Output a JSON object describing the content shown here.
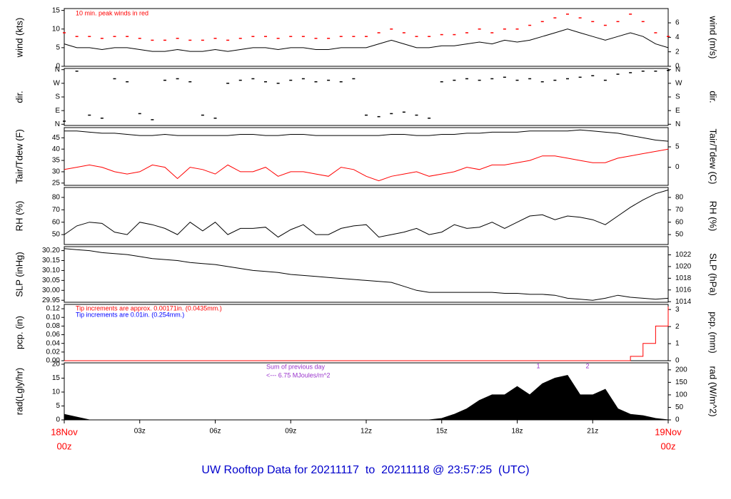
{
  "title": "UW Rooftop Data for 20211117  to  20211118 @ 23:57:25  (UTC)",
  "title_color": "#0000cc",
  "x_axis": {
    "xlim": [
      0,
      24
    ],
    "x": [
      0,
      0.5,
      1,
      1.5,
      2,
      2.5,
      3,
      3.5,
      4,
      4.5,
      5,
      5.5,
      6,
      6.5,
      7,
      7.5,
      8,
      8.5,
      9,
      9.5,
      10,
      10.5,
      11,
      11.5,
      12,
      12.5,
      13,
      13.5,
      14,
      14.5,
      15,
      15.5,
      16,
      16.5,
      17,
      17.5,
      18,
      18.5,
      19,
      19.5,
      20,
      20.5,
      21,
      21.5,
      22,
      22.5,
      23,
      23.5,
      24
    ],
    "xticks": [
      {
        "value": 0,
        "label": "18Nov",
        "label2": "00z",
        "color": "#ff0000"
      },
      {
        "value": 3,
        "label": "03z"
      },
      {
        "value": 6,
        "label": "06z"
      },
      {
        "value": 9,
        "label": "09z"
      },
      {
        "value": 12,
        "label": "12z"
      },
      {
        "value": 15,
        "label": "15z"
      },
      {
        "value": 18,
        "label": "18z"
      },
      {
        "value": 21,
        "label": "21z"
      },
      {
        "value": 24,
        "label": "19Nov",
        "label2": "00z",
        "color": "#ff0000"
      }
    ]
  },
  "chart_data": [
    {
      "type": "line",
      "ylabel": "wind (kts)",
      "y2label": "wind (m/s)",
      "ylim": [
        0,
        15.5
      ],
      "yticks": [
        0,
        5,
        10,
        15
      ],
      "y2lim": [
        0,
        7.97
      ],
      "y2ticks": [
        0,
        2,
        4,
        6
      ],
      "annotations": [
        {
          "text": "10 min. peak winds in red",
          "color": "#ff0000"
        }
      ],
      "series": [
        {
          "name": "wind",
          "mark": "line",
          "color": "#000000",
          "values": [
            6,
            5,
            5,
            4.5,
            5,
            5,
            4.5,
            4,
            4,
            4.5,
            4,
            4,
            4.5,
            4,
            4.5,
            5,
            5,
            4.5,
            5,
            5,
            4.5,
            4.5,
            5,
            5,
            5,
            6,
            7,
            6,
            5,
            5,
            5.5,
            5.5,
            6,
            6.5,
            6,
            7,
            6.5,
            7,
            8,
            9,
            10,
            9,
            8,
            7,
            8,
            9,
            8,
            6,
            5
          ]
        },
        {
          "name": "peak",
          "mark": "points",
          "color": "#ff0000",
          "values": [
            9,
            8,
            8,
            7.5,
            8,
            8,
            7.5,
            7,
            7,
            7.5,
            7,
            7,
            7.5,
            7,
            7.5,
            8,
            8,
            7.5,
            8,
            8,
            7.5,
            7.5,
            8,
            8,
            8,
            9,
            10,
            9,
            8,
            8,
            8.5,
            8.5,
            9,
            10,
            9,
            10,
            10,
            11,
            12,
            13,
            14,
            13,
            12,
            11,
            12,
            14,
            12,
            9,
            8
          ]
        }
      ]
    },
    {
      "type": "scatter",
      "ylabel": "dir.",
      "y2label": "dir.",
      "ylim": [
        -8,
        368
      ],
      "yticks": [
        {
          "value": 360,
          "label": "N"
        },
        {
          "value": 270,
          "label": "W"
        },
        {
          "value": 180,
          "label": "S"
        },
        {
          "value": 90,
          "label": "E"
        },
        {
          "value": 0,
          "label": "N"
        }
      ],
      "y2lim": [
        -8,
        368
      ],
      "y2ticks": [
        {
          "value": 360,
          "label": "N"
        },
        {
          "value": 270,
          "label": "W"
        },
        {
          "value": 180,
          "label": "S"
        },
        {
          "value": 90,
          "label": "E"
        },
        {
          "value": 0,
          "label": "N"
        }
      ],
      "series": [
        {
          "name": "direction",
          "mark": "points",
          "color": "#000000",
          "values": [
            20,
            350,
            60,
            40,
            300,
            280,
            70,
            30,
            290,
            300,
            280,
            60,
            40,
            270,
            290,
            300,
            280,
            270,
            290,
            300,
            280,
            290,
            280,
            300,
            60,
            50,
            70,
            80,
            60,
            40,
            280,
            290,
            300,
            290,
            300,
            310,
            290,
            300,
            280,
            290,
            300,
            310,
            320,
            290,
            330,
            340,
            350,
            350,
            355
          ]
        }
      ]
    },
    {
      "type": "line",
      "ylabel": "Tair/Tdew (F)",
      "y2label": "Tair/Tdew (C)",
      "ylim": [
        24,
        49.5
      ],
      "yticks": [
        25,
        30,
        35,
        40,
        45
      ],
      "y2lim": [
        -4.44,
        9.72
      ],
      "y2ticks": [
        0,
        5
      ],
      "series": [
        {
          "name": "Tair",
          "mark": "line",
          "color": "#000000",
          "values": [
            48,
            48,
            47.5,
            47,
            47,
            46.5,
            46,
            46,
            46.5,
            46,
            46,
            46,
            46,
            46,
            46.5,
            46.5,
            46,
            46,
            46.5,
            46.5,
            46,
            46,
            46,
            46,
            46,
            46,
            46.5,
            46.5,
            46,
            46,
            46.5,
            46.5,
            47,
            47,
            47.5,
            47.5,
            47.5,
            48,
            48,
            48,
            48,
            48.5,
            48,
            47.5,
            47,
            46,
            45,
            44,
            43.5
          ]
        },
        {
          "name": "Tdew",
          "mark": "line",
          "color": "#ff0000",
          "values": [
            31,
            32,
            33,
            32,
            30,
            29,
            30,
            33,
            32,
            27,
            32,
            31,
            29,
            33,
            30,
            30,
            32,
            28,
            30,
            30,
            29,
            28,
            32,
            31,
            28,
            26,
            28,
            29,
            30,
            28,
            29,
            30,
            32,
            31,
            33,
            33,
            34,
            35,
            37,
            37,
            36,
            35,
            34,
            34,
            36,
            37,
            38,
            39,
            40
          ]
        }
      ]
    },
    {
      "type": "line",
      "ylabel": "RH (%)",
      "y2label": "RH (%)",
      "ylim": [
        42,
        88
      ],
      "yticks": [
        50,
        60,
        70,
        80
      ],
      "y2lim": [
        42,
        88
      ],
      "y2ticks": [
        50,
        60,
        70,
        80
      ],
      "series": [
        {
          "name": "RH",
          "mark": "line",
          "color": "#000000",
          "values": [
            50,
            57,
            60,
            59,
            52,
            50,
            60,
            58,
            55,
            50,
            60,
            53,
            60,
            50,
            55,
            55,
            56,
            48,
            54,
            58,
            50,
            50,
            55,
            57,
            58,
            48,
            50,
            52,
            55,
            50,
            52,
            58,
            55,
            56,
            60,
            55,
            60,
            65,
            66,
            62,
            65,
            64,
            62,
            58,
            65,
            72,
            78,
            83,
            86
          ]
        }
      ]
    },
    {
      "type": "line",
      "ylabel": "SLP (inHg)",
      "y2label": "SLP (hPa)",
      "ylim": [
        29.94,
        30.22
      ],
      "yticks": [
        29.95,
        {
          "value": 30.0,
          "label": "30.00"
        },
        30.05,
        {
          "value": 30.1,
          "label": "30.10"
        },
        30.15,
        {
          "value": 30.2,
          "label": "30.20"
        }
      ],
      "y2lim": [
        1013.9,
        1023.4
      ],
      "y2ticks": [
        1014,
        1016,
        1018,
        1020,
        1022
      ],
      "series": [
        {
          "name": "SLP",
          "mark": "line",
          "color": "#000000",
          "values": [
            30.21,
            30.205,
            30.2,
            30.19,
            30.185,
            30.18,
            30.17,
            30.16,
            30.155,
            30.15,
            30.14,
            30.135,
            30.13,
            30.12,
            30.11,
            30.1,
            30.095,
            30.09,
            30.08,
            30.075,
            30.07,
            30.065,
            30.06,
            30.055,
            30.05,
            30.045,
            30.04,
            30.02,
            30.0,
            29.99,
            29.99,
            29.99,
            29.99,
            29.99,
            29.99,
            29.985,
            29.985,
            29.98,
            29.98,
            29.975,
            29.96,
            29.955,
            29.95,
            29.96,
            29.975,
            29.965,
            29.96,
            29.955,
            29.96
          ]
        }
      ]
    },
    {
      "type": "line",
      "ylabel": "pcp. (in)",
      "y2label": "pcp. (mm)",
      "ylim": [
        0,
        0.13
      ],
      "yticks": [
        {
          "value": 0,
          "label": "0.00"
        },
        {
          "value": 0.02,
          "label": "0.02"
        },
        {
          "value": 0.04,
          "label": "0.04"
        },
        {
          "value": 0.06,
          "label": "0.06"
        },
        {
          "value": 0.08,
          "label": "0.08"
        },
        {
          "value": 0.1,
          "label": "0.10"
        },
        {
          "value": 0.12,
          "label": "0.12"
        }
      ],
      "y2lim": [
        0,
        3.3
      ],
      "y2ticks": [
        0,
        1,
        2,
        3
      ],
      "annotations": [
        {
          "text": "Tip increments are approx. 0.00171in. (0.0435mm.)",
          "color": "#ff0000"
        },
        {
          "text": "Tip increments are 0.01in. (0.254mm.)",
          "color": "#0000ff"
        }
      ],
      "series": [
        {
          "name": "pcp",
          "mark": "step",
          "color": "#ff0000",
          "values": [
            0,
            0,
            0,
            0,
            0,
            0,
            0,
            0,
            0,
            0,
            0,
            0,
            0,
            0,
            0,
            0,
            0,
            0,
            0,
            0,
            0,
            0,
            0,
            0,
            0,
            0,
            0,
            0,
            0,
            0,
            0,
            0,
            0,
            0,
            0,
            0,
            0,
            0,
            0,
            0,
            0,
            0,
            0,
            0,
            0,
            0.01,
            0.04,
            0.08,
            0.125
          ]
        }
      ]
    },
    {
      "type": "area",
      "ylabel": "rad(Lgly/hr)",
      "y2label": "rad (W/m^2)",
      "ylim": [
        0,
        20.5
      ],
      "yticks": [
        0,
        5,
        10,
        15,
        20
      ],
      "y2lim": [
        0,
        228
      ],
      "y2ticks": [
        0,
        50,
        100,
        150,
        200
      ],
      "annotations": [
        {
          "text": "Sum of previous day",
          "color": "#9933cc"
        },
        {
          "text": "<--- 6.75 MJoules/m^2",
          "color": "#9933cc"
        },
        {
          "text": "1",
          "color": "#9933cc"
        },
        {
          "text": "2",
          "color": "#9933cc"
        }
      ],
      "series": [
        {
          "name": "rad",
          "mark": "area",
          "color": "#000000",
          "values": [
            2,
            1,
            0,
            0,
            0,
            0,
            0,
            0,
            0,
            0,
            0,
            0,
            0,
            0,
            0,
            0,
            0,
            0,
            0,
            0,
            0,
            0,
            0,
            0,
            0,
            0,
            0,
            0,
            0,
            0,
            0.5,
            2,
            4,
            7,
            9,
            9,
            12,
            9,
            13,
            15,
            16,
            9,
            9,
            11,
            4,
            2,
            1.5,
            0.5,
            0
          ]
        }
      ]
    }
  ]
}
